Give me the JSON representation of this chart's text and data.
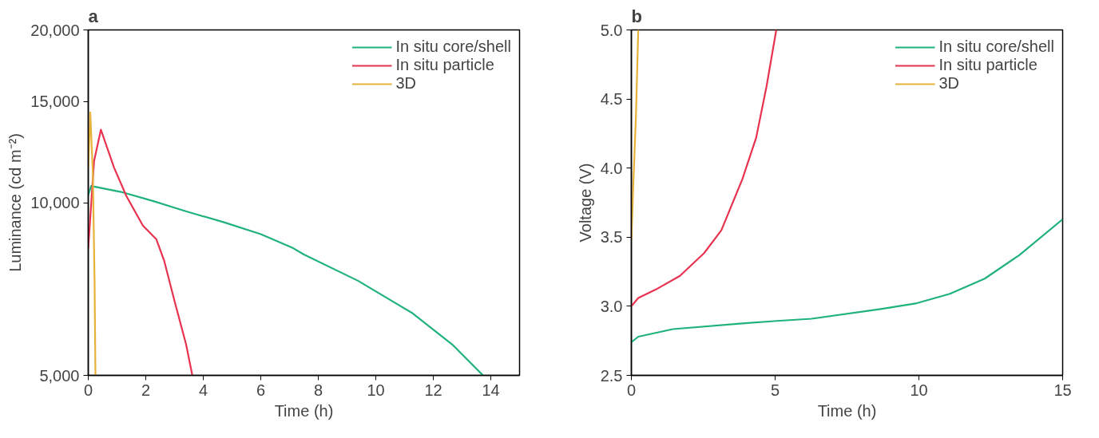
{
  "chart_data": [
    {
      "type": "line",
      "title": "a",
      "xlabel": "Time (h)",
      "ylabel": "Luminance (cd m⁻²)",
      "log": "y",
      "legend": "top right",
      "xlim": [
        0,
        15
      ],
      "xticks": [
        0,
        2,
        4,
        6,
        8,
        10,
        12,
        14
      ],
      "ylim": [
        5000,
        20000
      ],
      "yticks": [
        {
          "value": 5000,
          "label": "5,000"
        },
        {
          "value": 10000,
          "label": "10,000"
        },
        {
          "value": 15000,
          "label": "15,000"
        },
        {
          "value": 20000,
          "label": "20,000"
        }
      ],
      "series": [
        {
          "name": "In situ core/shell",
          "color": "#1fb27b",
          "x": [
            0,
            0.1,
            1.14,
            2.27,
            3.39,
            4.7,
            6.0,
            7.13,
            7.5,
            9.38,
            11.25,
            12.66,
            13.73
          ],
          "values": [
            10300,
            10690,
            10440,
            10060,
            9660,
            9250,
            8810,
            8330,
            8120,
            7310,
            6430,
            5660,
            5000
          ]
        },
        {
          "name": "In situ particle",
          "color": "#e8334f",
          "x": [
            0,
            0.2,
            0.44,
            0.9,
            1.33,
            1.9,
            2.37,
            2.64,
            3.0,
            3.4,
            3.62
          ],
          "values": [
            8330,
            11800,
            13400,
            11500,
            10260,
            9120,
            8630,
            7920,
            6740,
            5670,
            5000
          ]
        },
        {
          "name": "3D",
          "color": "#e6b23a",
          "x": [
            0,
            0.07,
            0.16,
            0.22,
            0.25
          ],
          "values": [
            11500,
            14360,
            11250,
            7250,
            5000
          ]
        }
      ]
    },
    {
      "type": "line",
      "title": "b",
      "xlabel": "Time (h)",
      "ylabel": "Voltage (V)",
      "legend": "top right",
      "xlim": [
        0,
        15
      ],
      "xticks": [
        0,
        5,
        10,
        15
      ],
      "ylim": [
        2.5,
        5.0
      ],
      "yticks": [
        2.5,
        {
          "value": 3,
          "label": "3.0"
        },
        3.5,
        {
          "value": 4,
          "label": "4.0"
        },
        4.5,
        {
          "value": 5,
          "label": "5.0"
        }
      ],
      "series": [
        {
          "name": "In situ core/shell",
          "color": "#1fb27b",
          "x": [
            0,
            0.24,
            1.45,
            3.86,
            5.06,
            6.27,
            8.67,
            9.88,
            11.08,
            12.29,
            13.49,
            15
          ],
          "values": [
            2.74,
            2.78,
            2.835,
            2.876,
            2.894,
            2.91,
            2.98,
            3.02,
            3.09,
            3.2,
            3.37,
            3.63
          ]
        },
        {
          "name": "In situ particle",
          "color": "#e8334f",
          "x": [
            0,
            0.24,
            0.84,
            1.69,
            2.53,
            3.13,
            3.86,
            4.34,
            4.7,
            5.04
          ],
          "values": [
            3.0,
            3.06,
            3.12,
            3.22,
            3.385,
            3.55,
            3.92,
            4.22,
            4.59,
            5.0
          ]
        },
        {
          "name": "3D",
          "color": "#e6b23a",
          "x": [
            0,
            0.06,
            0.16,
            0.24
          ],
          "values": [
            3.48,
            3.84,
            4.38,
            5.0
          ]
        }
      ]
    }
  ]
}
